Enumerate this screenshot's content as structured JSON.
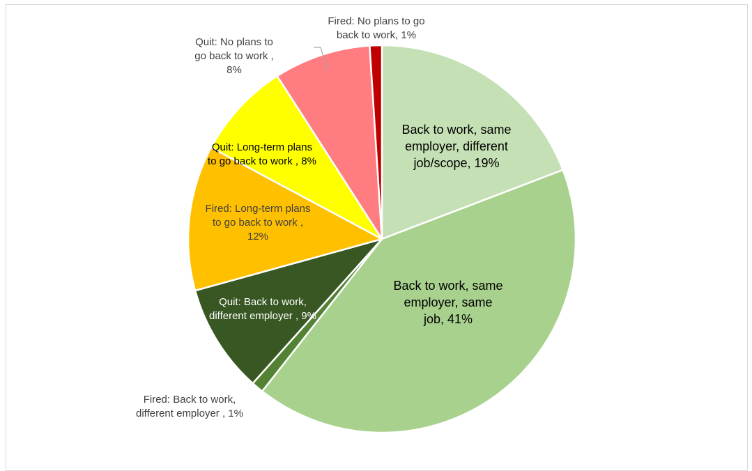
{
  "chart_data": {
    "type": "pie",
    "title": "",
    "start_angle_deg": 0,
    "direction": "clockwise",
    "legend": "none",
    "slices": [
      {
        "label": "Back to work, same employer, different job/scope, 19%",
        "value": 19,
        "color": "#c5e0b4"
      },
      {
        "label": "Back to work, same employer,  same job, 41%",
        "value": 41,
        "color": "#a9d18e"
      },
      {
        "label": "Fired: Back to work, different employer , 1%",
        "value": 1,
        "color": "#548235"
      },
      {
        "label": "Quit: Back to work, different employer , 9%",
        "value": 9,
        "color": "#385723"
      },
      {
        "label": "Fired: Long-term plans to go back to work , 12%",
        "value": 12,
        "color": "#ffc000"
      },
      {
        "label": "Quit: Long-term plans to go back to work , 8%",
        "value": 8,
        "color": "#ffff00"
      },
      {
        "label": "Quit: No plans to go back to work , 8%",
        "value": 8,
        "color": "#ff7c80"
      },
      {
        "label": "Fired: No plans to go back to work, 1%",
        "value": 1,
        "color": "#c00000"
      }
    ]
  }
}
